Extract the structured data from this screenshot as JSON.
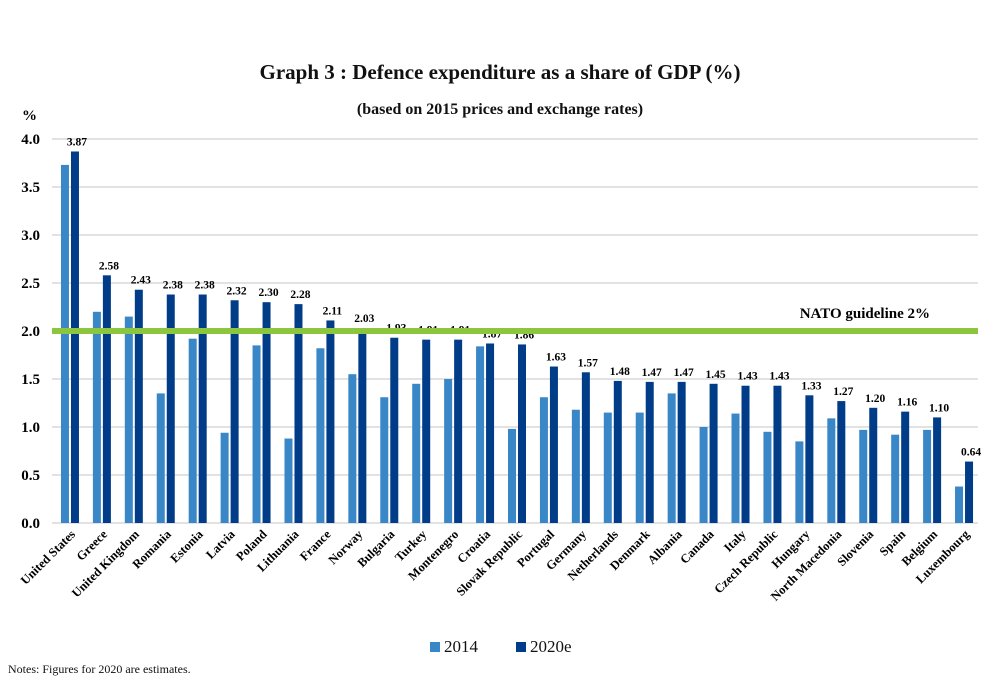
{
  "chart_data": {
    "type": "bar",
    "title": "Graph 3 : Defence expenditure as a share of GDP (%)",
    "subtitle": "(based on 2015 prices and exchange rates)",
    "ylabel": "%",
    "xlabel": "",
    "ylim": [
      0,
      4.0
    ],
    "yticks": [
      "0.0",
      "0.5",
      "1.0",
      "1.5",
      "2.0",
      "2.5",
      "3.0",
      "3.5",
      "4.0"
    ],
    "grid": true,
    "legend_position": "bottom",
    "categories": [
      "United States",
      "Greece",
      "United Kingdom",
      "Romania",
      "Estonia",
      "Latvia",
      "Poland",
      "Lithuania",
      "France",
      "Norway",
      "Bulgaria",
      "Turkey",
      "Montenegro",
      "Croatia",
      "Slovak Republic",
      "Portugal",
      "Germany",
      "Netherlands",
      "Denmark",
      "Albania",
      "Canada",
      "Italy",
      "Czech Republic",
      "Hungary",
      "North Macedonia",
      "Slovenia",
      "Spain",
      "Belgium",
      "Luxembourg"
    ],
    "series": [
      {
        "name": "2014",
        "color": "#3a87c8",
        "values": [
          3.73,
          2.2,
          2.15,
          1.35,
          1.92,
          0.94,
          1.85,
          0.88,
          1.82,
          1.55,
          1.31,
          1.45,
          1.5,
          1.84,
          0.98,
          1.31,
          1.18,
          1.15,
          1.15,
          1.35,
          1.0,
          1.14,
          0.95,
          0.85,
          1.09,
          0.97,
          0.92,
          0.97,
          0.38
        ]
      },
      {
        "name": "2020e",
        "color": "#003c87",
        "values": [
          3.87,
          2.58,
          2.43,
          2.38,
          2.38,
          2.32,
          2.3,
          2.28,
          2.11,
          2.03,
          1.93,
          1.91,
          1.91,
          1.87,
          1.86,
          1.63,
          1.57,
          1.48,
          1.47,
          1.47,
          1.45,
          1.43,
          1.43,
          1.33,
          1.27,
          1.2,
          1.16,
          1.1,
          0.64
        ],
        "labels": [
          "3.87",
          "2.58",
          "2.43",
          "2.38",
          "2.38",
          "2.32",
          "2.30",
          "2.28",
          "2.11",
          "2.03",
          "1.93",
          "1.91",
          "1.91",
          "1.87",
          "1.86",
          "1.63",
          "1.57",
          "1.48",
          "1.47",
          "1.47",
          "1.45",
          "1.43",
          "1.43",
          "1.33",
          "1.27",
          "1.20",
          "1.16",
          "1.10",
          "0.64"
        ]
      }
    ],
    "reference_line": {
      "value": 2.0,
      "label": "NATO guideline 2%",
      "color": "#8cc63f"
    }
  },
  "notes": "Notes: Figures for 2020 are estimates."
}
